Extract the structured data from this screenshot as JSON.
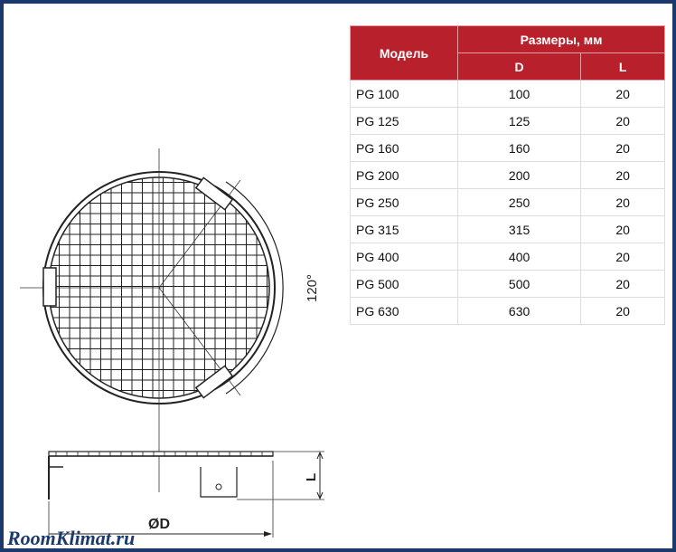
{
  "table": {
    "header_model": "Модель",
    "header_dimensions": "Размеры, мм",
    "header_d": "D",
    "header_l": "L",
    "rows": [
      {
        "model": "PG 100",
        "d": "100",
        "l": "20"
      },
      {
        "model": "PG 125",
        "d": "125",
        "l": "20"
      },
      {
        "model": "PG 160",
        "d": "160",
        "l": "20"
      },
      {
        "model": "PG 200",
        "d": "200",
        "l": "20"
      },
      {
        "model": "PG 250",
        "d": "250",
        "l": "20"
      },
      {
        "model": "PG 315",
        "d": "315",
        "l": "20"
      },
      {
        "model": "PG 400",
        "d": "400",
        "l": "20"
      },
      {
        "model": "PG 500",
        "d": "500",
        "l": "20"
      },
      {
        "model": "PG 630",
        "d": "630",
        "l": "20"
      }
    ]
  },
  "drawing": {
    "angle_label": "120°",
    "diameter_label": "ØD",
    "length_label": "L"
  },
  "watermark": "RoomKlimat.ru",
  "colors": {
    "header": "#b8212c",
    "border": "#1b3a6b"
  }
}
